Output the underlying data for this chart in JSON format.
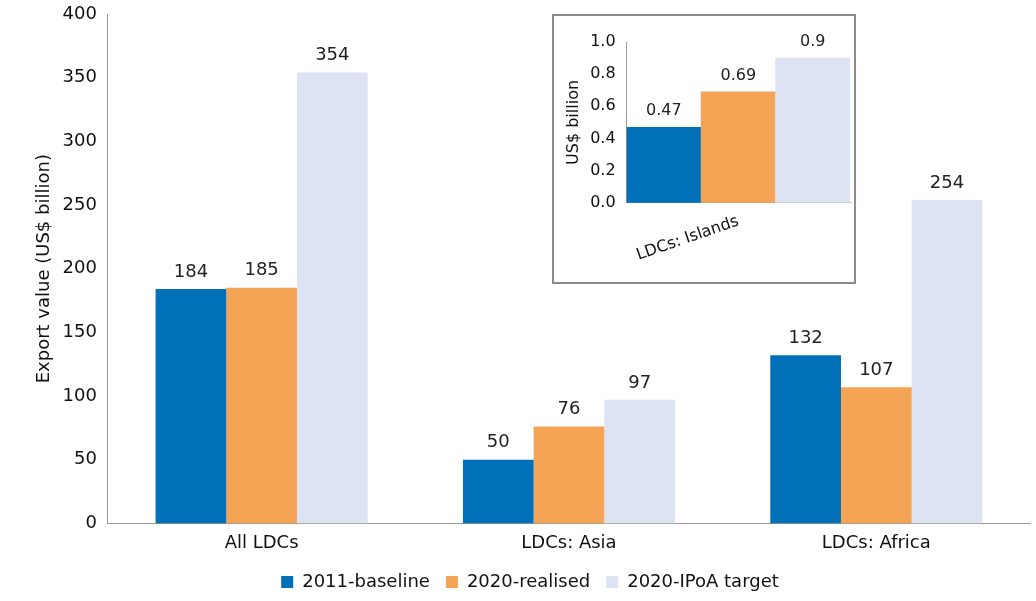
{
  "chart_data": [
    {
      "type": "bar",
      "ylabel": "Export value (US$ billion)",
      "categories": [
        "All LDCs",
        "LDCs: Asia",
        "LDCs: Africa"
      ],
      "series": [
        {
          "name": "2011-baseline",
          "color": "#0070b8",
          "values": [
            184,
            50,
            132
          ]
        },
        {
          "name": "2020-realised",
          "color": "#f5a456",
          "values": [
            185,
            76,
            107
          ]
        },
        {
          "name": "2020-IPoA target",
          "color": "#dde3f3",
          "values": [
            354,
            97,
            254
          ]
        }
      ],
      "ylim": [
        0,
        400
      ],
      "yticks": [
        0,
        50,
        100,
        150,
        200,
        250,
        300,
        350,
        400
      ],
      "data_labels": true,
      "legend": "bottom"
    },
    {
      "type": "bar",
      "ylabel": "US$ billion",
      "categories": [
        null,
        "LDCs: Islands",
        null
      ],
      "values": [
        0.47,
        0.69,
        0.9
      ],
      "colors": [
        "#0070b8",
        "#f5a456",
        "#dde3f3"
      ],
      "ylim": [
        0,
        1
      ],
      "yticks": [
        {
          "value": 0,
          "label": "0.0"
        },
        0.2,
        0.4,
        0.6,
        0.8,
        {
          "value": 1,
          "label": "1.0"
        }
      ],
      "data_labels": true
    }
  ]
}
